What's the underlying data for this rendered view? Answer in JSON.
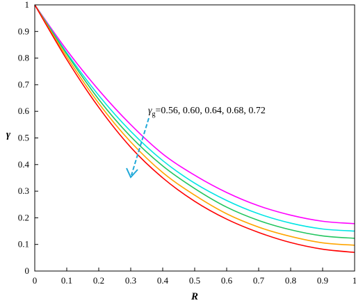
{
  "chart_data": {
    "type": "line",
    "xlabel": "R",
    "ylabel": "γ",
    "xlim": [
      0,
      1
    ],
    "ylim": [
      0,
      1
    ],
    "x_ticks": [
      "0",
      "0.1",
      "0.2",
      "0.3",
      "0.4",
      "0.5",
      "0.6",
      "0.7",
      "0.8",
      "0.9",
      "1"
    ],
    "y_ticks": [
      "0",
      "0.1",
      "0.2",
      "0.3",
      "0.4",
      "0.5",
      "0.6",
      "0.7",
      "0.8",
      "0.9",
      "1"
    ],
    "grid": false,
    "legend": "none",
    "x": [
      0,
      0.1,
      0.2,
      0.3,
      0.4,
      0.5,
      0.6,
      0.7,
      0.8,
      0.9,
      1.0
    ],
    "series": [
      {
        "color": "#ff00ff",
        "values": [
          1.0,
          0.83,
          0.68,
          0.55,
          0.44,
          0.36,
          0.295,
          0.245,
          0.21,
          0.187,
          0.178
        ]
      },
      {
        "color": "#00e5e5",
        "values": [
          1.0,
          0.82,
          0.66,
          0.525,
          0.415,
          0.33,
          0.265,
          0.215,
          0.18,
          0.158,
          0.15
        ]
      },
      {
        "color": "#22c55e",
        "values": [
          1.0,
          0.815,
          0.645,
          0.505,
          0.395,
          0.31,
          0.24,
          0.19,
          0.155,
          0.132,
          0.123
        ]
      },
      {
        "color": "#ffa500",
        "values": [
          1.0,
          0.805,
          0.63,
          0.485,
          0.37,
          0.285,
          0.215,
          0.165,
          0.13,
          0.106,
          0.097
        ]
      },
      {
        "color": "#ff0000",
        "values": [
          1.0,
          0.795,
          0.615,
          0.465,
          0.35,
          0.262,
          0.195,
          0.145,
          0.107,
          0.082,
          0.07
        ]
      }
    ],
    "annotation": {
      "symbol": "γ",
      "subscript": "g",
      "text": "=0.56, 0.60, 0.64, 0.68, 0.72",
      "arrow_color": "#1fa8d8"
    }
  }
}
